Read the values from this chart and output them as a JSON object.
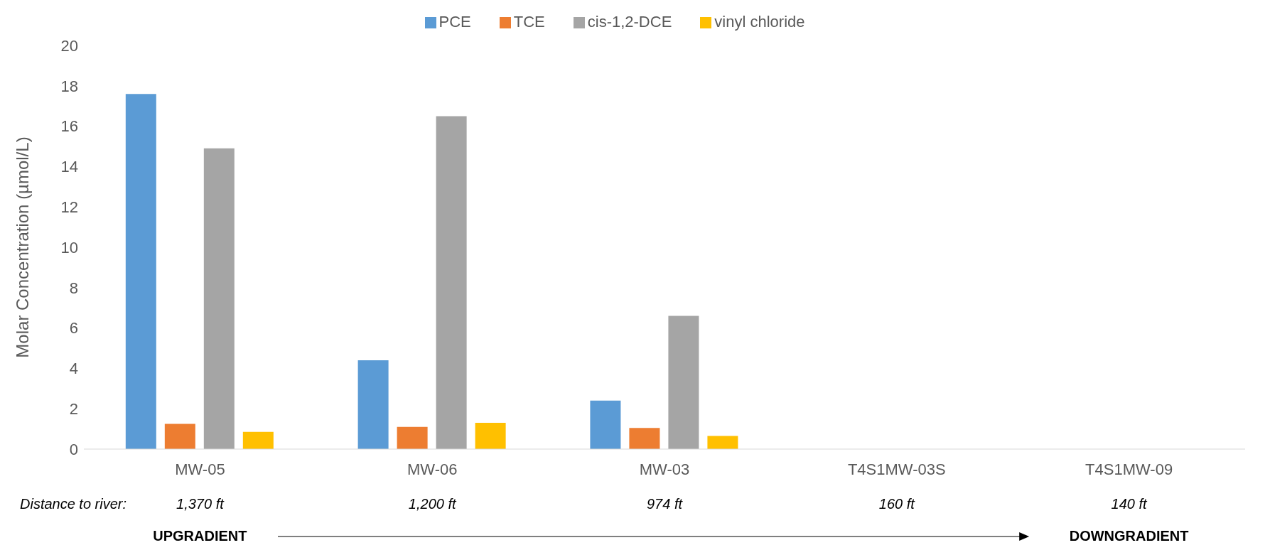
{
  "chart_data": {
    "type": "bar",
    "ylabel": "Molar Concentration (µmol/L)",
    "categories": [
      "MW-05",
      "MW-06",
      "MW-03",
      "T4S1MW-03S",
      "T4S1MW-09"
    ],
    "series": [
      {
        "name": "PCE",
        "color": "#5b9bd5",
        "values": [
          17.6,
          4.4,
          2.4,
          null,
          null
        ]
      },
      {
        "name": "TCE",
        "color": "#ed7d31",
        "values": [
          1.25,
          1.1,
          1.05,
          null,
          null
        ]
      },
      {
        "name": "cis-1,2-DCE",
        "color": "#a5a5a5",
        "values": [
          14.9,
          16.5,
          6.6,
          null,
          null
        ]
      },
      {
        "name": "vinyl chloride",
        "color": "#ffc000",
        "values": [
          0.85,
          1.3,
          0.65,
          null,
          null
        ]
      }
    ],
    "ylim": [
      0,
      20
    ],
    "yticks": [
      0,
      2,
      4,
      6,
      8,
      10,
      12,
      14,
      16,
      18,
      20
    ],
    "grid": false,
    "legend": "top",
    "annotations": [
      "Distance to river:",
      "1,370 ft",
      "1,200 ft",
      "974 ft",
      "160 ft",
      "140 ft",
      "UPGRADIENT",
      "DOWNGRADIENT"
    ]
  }
}
